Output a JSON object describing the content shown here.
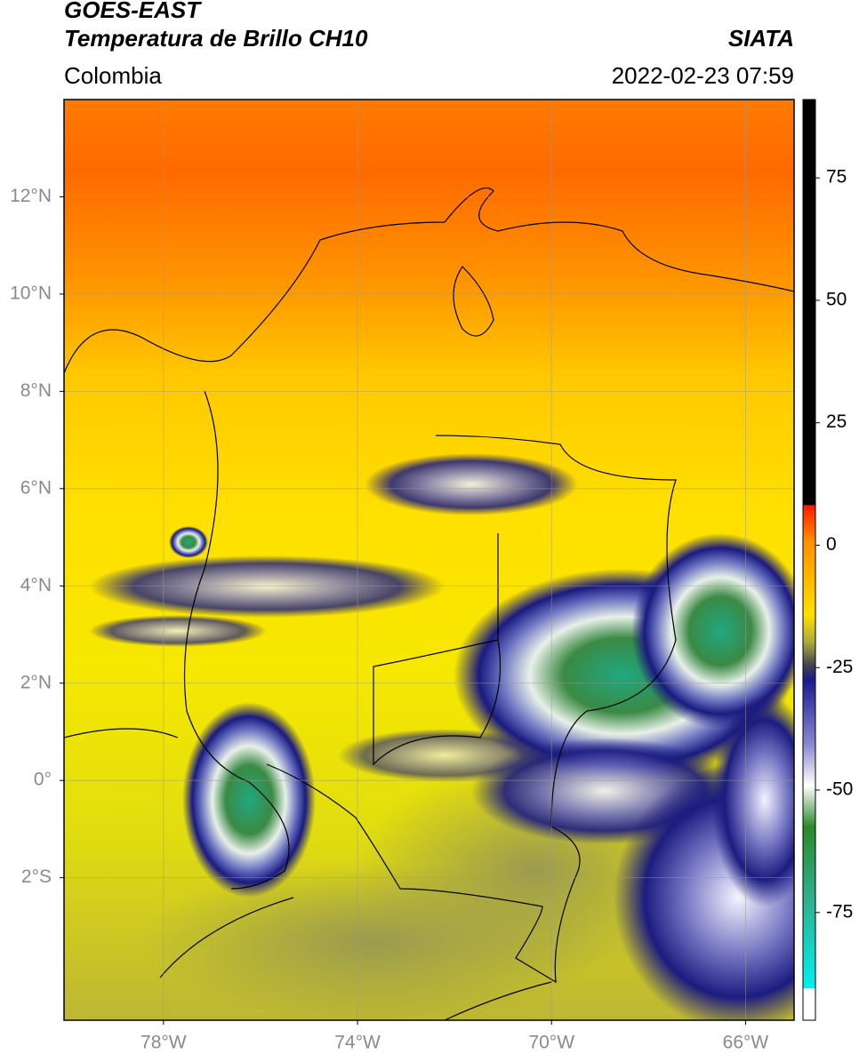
{
  "header": {
    "title": "GOES-EAST",
    "subtitle": "Temperatura de Brillo CH10",
    "source": "SIATA",
    "region": "Colombia",
    "timestamp": "2022-02-23 07:59"
  },
  "map": {
    "xlim": [
      -80.05,
      -65
    ],
    "ylim": [
      -4.93,
      14
    ],
    "xticks": [
      {
        "value": -78,
        "label": "78°W"
      },
      {
        "value": -74,
        "label": "74°W"
      },
      {
        "value": -70,
        "label": "70°W"
      },
      {
        "value": -66,
        "label": "66°W"
      }
    ],
    "yticks": [
      {
        "value": 12,
        "label": "12°N"
      },
      {
        "value": 10,
        "label": "10°N"
      },
      {
        "value": 8,
        "label": "8°N"
      },
      {
        "value": 6,
        "label": "6°N"
      },
      {
        "value": 4,
        "label": "4°N"
      },
      {
        "value": 2,
        "label": "2°N"
      },
      {
        "value": 0,
        "label": "0°"
      },
      {
        "value": -2,
        "label": "2°S"
      }
    ],
    "grid": true
  },
  "colorbar": {
    "lim": [
      -97,
      91
    ],
    "ticks": [
      75,
      50,
      25,
      0,
      -25,
      -50,
      -75
    ]
  }
}
